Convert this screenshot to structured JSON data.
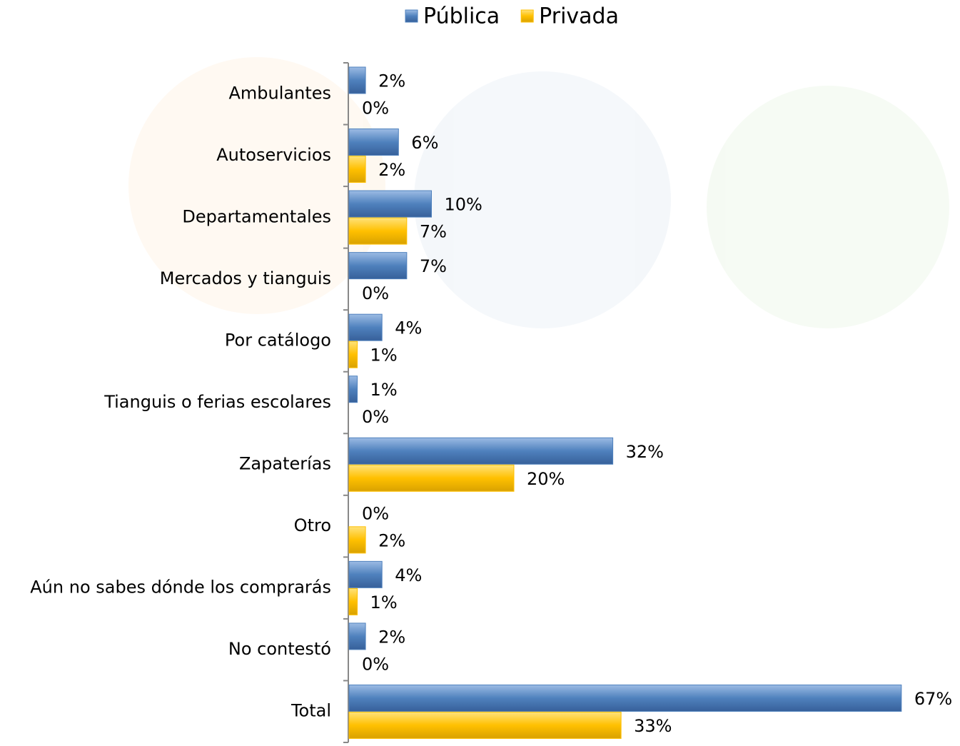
{
  "chart_data": {
    "type": "bar",
    "orientation": "horizontal",
    "categories": [
      "Ambulantes",
      "Autoservicios",
      "Departamentales",
      "Mercados y tianguis",
      "Por catálogo",
      "Tianguis o ferias escolares",
      "Zapaterías",
      "Otro",
      "Aún no sabes dónde los comprarás",
      "No contestó",
      "Total"
    ],
    "series": [
      {
        "name": "Pública",
        "color": "#4f81bd",
        "values": [
          2,
          6,
          10,
          7,
          4,
          1,
          32,
          0,
          4,
          2,
          67
        ],
        "value_labels": [
          "2%",
          "6%",
          "10%",
          "7%",
          "4%",
          "1%",
          "32%",
          "0%",
          "4%",
          "2%",
          "67%"
        ]
      },
      {
        "name": "Privada",
        "color": "#ffc000",
        "values": [
          0,
          2,
          7,
          0,
          1,
          0,
          20,
          2,
          1,
          0,
          33
        ],
        "value_labels": [
          "0%",
          "2%",
          "7%",
          "0%",
          "1%",
          "0%",
          "20%",
          "2%",
          "1%",
          "0%",
          "33%"
        ]
      }
    ],
    "legend": "top"
  }
}
